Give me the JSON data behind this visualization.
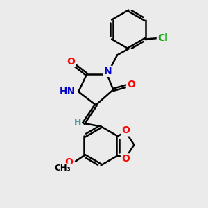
{
  "bg_color": "#ebebeb",
  "bond_color": "#000000",
  "bond_width": 1.8,
  "dbo": 0.055,
  "atom_colors": {
    "N": "#0000cc",
    "O": "#ff0000",
    "Cl": "#00aa00",
    "H": "#4a9a9a"
  },
  "font_size": 10
}
